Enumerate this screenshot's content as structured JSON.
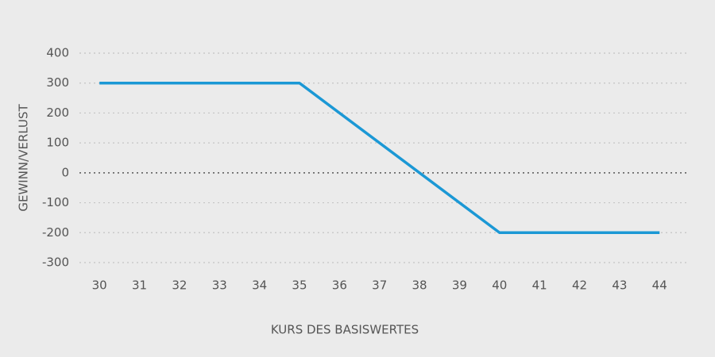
{
  "chart_data": {
    "type": "line",
    "x_label": "KURS DES BASISWERTES",
    "y_label": "GEWINN/VERLUST",
    "x": [
      30,
      35,
      40,
      44
    ],
    "values": [
      300,
      300,
      -200,
      -200
    ],
    "color": "#1b98d5",
    "xlim": [
      29.5,
      44.75
    ],
    "xticks": [
      30,
      31,
      32,
      33,
      34,
      35,
      36,
      37,
      38,
      39,
      40,
      41,
      42,
      43,
      44
    ],
    "ylim": [
      -300,
      400
    ],
    "yticks": [
      -300,
      -200,
      -100,
      0,
      100,
      200,
      300,
      400
    ],
    "grid": true
  }
}
